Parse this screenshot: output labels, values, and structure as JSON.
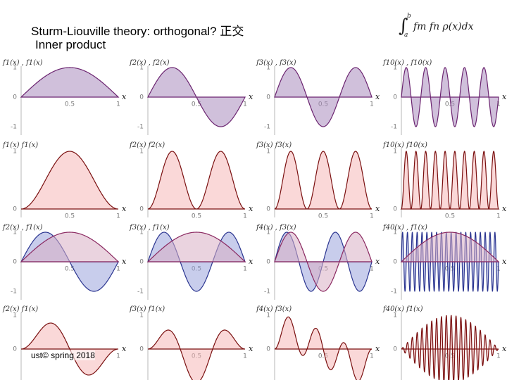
{
  "header": {
    "title": "Sturm-Liouville theory: orthogonal? 正交",
    "subtitle": "Inner product",
    "formula": {
      "upper": "b",
      "lower": "a",
      "integrand": "fm fn ρ(x)dx"
    }
  },
  "panels": [
    {
      "label": "f1(x) , f1(x)",
      "yticks": [
        "1",
        "0",
        "-1"
      ],
      "xticks": [
        "0.5",
        "1"
      ],
      "xlabel": "x"
    },
    {
      "label": "f2(x) , f2(x)",
      "yticks": [
        "1",
        "0",
        "-1"
      ],
      "xticks": [
        "0.5",
        "1"
      ],
      "xlabel": "x"
    },
    {
      "label": "f3(x) , f3(x)",
      "yticks": [
        "1",
        "0",
        "-1"
      ],
      "xticks": [
        "0.5",
        "1"
      ],
      "xlabel": "x"
    },
    {
      "label": "f10(x) , f10(x)",
      "yticks": [
        "1",
        "0",
        "-1"
      ],
      "xticks": [
        "0.5",
        "1"
      ],
      "xlabel": "x"
    },
    {
      "label": "f1(x) f1(x)",
      "yticks": [
        "1",
        "0"
      ],
      "xticks": [
        "0.5",
        "1"
      ],
      "xlabel": "x"
    },
    {
      "label": "f2(x) f2(x)",
      "yticks": [
        "1",
        "0"
      ],
      "xticks": [
        "0.5",
        "1"
      ],
      "xlabel": "x"
    },
    {
      "label": "f3(x) f3(x)",
      "yticks": [
        "1",
        "0"
      ],
      "xticks": [
        "0.5",
        "1"
      ],
      "xlabel": "x"
    },
    {
      "label": "f10(x) f10(x)",
      "yticks": [
        "1",
        "0"
      ],
      "xticks": [
        "0.5",
        "1"
      ],
      "xlabel": "x"
    },
    {
      "label": "f2(x) , f1(x)",
      "yticks": [
        "1",
        "0",
        "-1"
      ],
      "xticks": [
        "0.5",
        "1"
      ],
      "xlabel": "x"
    },
    {
      "label": "f3(x) , f1(x)",
      "yticks": [
        "1",
        "0",
        "-1"
      ],
      "xticks": [
        "0.5",
        "1"
      ],
      "xlabel": "x"
    },
    {
      "label": "f4(x) , f3(x)",
      "yticks": [
        "1",
        "0",
        "-1"
      ],
      "xticks": [
        "0.5",
        "1"
      ],
      "xlabel": "x"
    },
    {
      "label": "f40(x) , f1(x)",
      "yticks": [
        "1",
        "0",
        "-1"
      ],
      "xticks": [
        "0.5",
        "1"
      ],
      "xlabel": "x"
    },
    {
      "label": "f2(x) f1(x)",
      "yticks": [
        "1",
        "0",
        "-1"
      ],
      "xticks": [
        "0.5",
        "1"
      ],
      "xlabel": "x"
    },
    {
      "label": "f3(x) f1(x)",
      "yticks": [
        "1",
        "0",
        "-1"
      ],
      "xticks": [
        "0.5",
        "1"
      ],
      "xlabel": "x"
    },
    {
      "label": "f4(x) f3(x)",
      "yticks": [
        "1",
        "0",
        "-1"
      ],
      "xticks": [
        "0.5",
        "1"
      ],
      "xlabel": "x"
    },
    {
      "label": "f40(x) f1(x)",
      "yticks": [
        "1",
        "0",
        "-1"
      ],
      "xticks": [
        "0.5",
        "1"
      ],
      "xlabel": "x"
    }
  ],
  "footer": "ust© spring 2018"
}
